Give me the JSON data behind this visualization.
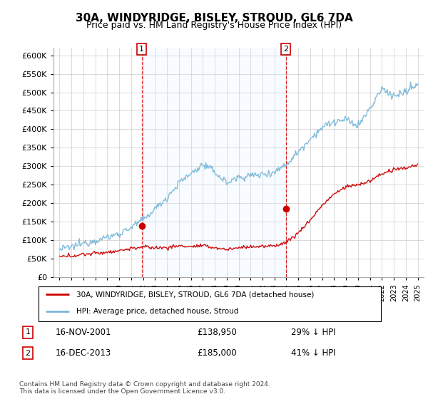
{
  "title": "30A, WINDYRIDGE, BISLEY, STROUD, GL6 7DA",
  "subtitle": "Price paid vs. HM Land Registry's House Price Index (HPI)",
  "legend_label_red": "30A, WINDYRIDGE, BISLEY, STROUD, GL6 7DA (detached house)",
  "legend_label_blue": "HPI: Average price, detached house, Stroud",
  "footer": "Contains HM Land Registry data © Crown copyright and database right 2024.\nThis data is licensed under the Open Government Licence v3.0.",
  "transaction1_date": "16-NOV-2001",
  "transaction1_price": "£138,950",
  "transaction1_hpi": "29% ↓ HPI",
  "transaction2_date": "16-DEC-2013",
  "transaction2_price": "£185,000",
  "transaction2_hpi": "41% ↓ HPI",
  "t1_x": 2001.88,
  "t1_y": 138950,
  "t2_x": 2013.96,
  "t2_y": 185000,
  "ylim_min": 0,
  "ylim_max": 620000,
  "xlim_min": 1994.5,
  "xlim_max": 2025.5,
  "yticks": [
    0,
    50000,
    100000,
    150000,
    200000,
    250000,
    300000,
    350000,
    400000,
    450000,
    500000,
    550000,
    600000
  ],
  "xticks": [
    1995,
    1996,
    1997,
    1998,
    1999,
    2000,
    2001,
    2002,
    2003,
    2004,
    2005,
    2006,
    2007,
    2008,
    2009,
    2010,
    2011,
    2012,
    2013,
    2014,
    2015,
    2016,
    2017,
    2018,
    2019,
    2020,
    2021,
    2022,
    2023,
    2024,
    2025
  ],
  "hpi_color": "#7ab8d9",
  "price_color": "#cc0000",
  "shade_color": "#ddeeff",
  "vline_color": "#dd0000",
  "background_color": "#ffffff",
  "grid_color": "#cccccc",
  "hpi_anchors_years": [
    1995,
    1996,
    1997,
    1998,
    1999,
    2000,
    2001,
    2002,
    2003,
    2004,
    2005,
    2006,
    2007,
    2008,
    2009,
    2010,
    2011,
    2012,
    2013,
    2014,
    2015,
    2016,
    2017,
    2018,
    2019,
    2020,
    2021,
    2022,
    2023,
    2024,
    2025
  ],
  "hpi_anchors_vals": [
    75000,
    82000,
    92000,
    100000,
    108000,
    118000,
    135000,
    155000,
    185000,
    215000,
    255000,
    280000,
    305000,
    285000,
    255000,
    270000,
    275000,
    278000,
    285000,
    305000,
    340000,
    375000,
    405000,
    420000,
    425000,
    410000,
    455000,
    510000,
    490000,
    500000,
    520000
  ],
  "price_anchors_years": [
    1995,
    1996,
    1997,
    1998,
    1999,
    2000,
    2001,
    2002,
    2003,
    2004,
    2005,
    2006,
    2007,
    2008,
    2009,
    2010,
    2011,
    2012,
    2013,
    2014,
    2015,
    2016,
    2017,
    2018,
    2019,
    2020,
    2021,
    2022,
    2023,
    2024,
    2025
  ],
  "price_anchors_vals": [
    55000,
    58000,
    62000,
    65000,
    68000,
    72000,
    78000,
    82000,
    80000,
    80000,
    85000,
    83000,
    85000,
    80000,
    75000,
    80000,
    83000,
    83000,
    85000,
    95000,
    120000,
    155000,
    195000,
    225000,
    245000,
    250000,
    260000,
    280000,
    290000,
    295000,
    305000
  ]
}
